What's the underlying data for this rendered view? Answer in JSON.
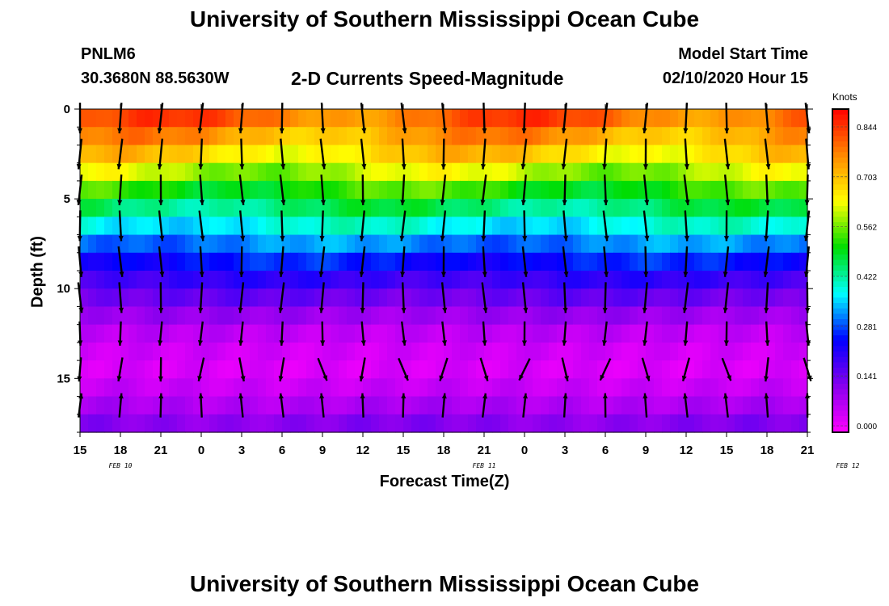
{
  "header": {
    "title": "University of Southern Mississippi Ocean Cube",
    "station_id": "PNLM6",
    "coordinates": "30.3680N 88.5630W",
    "chart_title": "2-D Currents Speed-Magnitude",
    "model_start_label": "Model Start Time",
    "model_start_value": "02/10/2020 Hour 15"
  },
  "footer": {
    "title": "University of Southern Mississippi Ocean Cube"
  },
  "colorbar": {
    "units": "Knots",
    "ticks": [
      "0.000",
      "0.141",
      "0.281",
      "0.422",
      "0.562",
      "0.703",
      "0.844"
    ],
    "range": [
      0,
      0.92
    ],
    "colors": [
      "#ff00ff",
      "#8800ee",
      "#0000ff",
      "#00ffff",
      "#00dd00",
      "#ffff00",
      "#ff8800",
      "#ff0000"
    ]
  },
  "chart_data": {
    "type": "heatmap",
    "title": "2-D Currents Speed-Magnitude",
    "xlabel": "Forecast Time(Z)",
    "ylabel": "Depth (ft)",
    "x_tick_labels": [
      "15",
      "18",
      "21",
      "0",
      "3",
      "6",
      "9",
      "12",
      "15",
      "18",
      "21",
      "0",
      "3",
      "6",
      "9",
      "12",
      "15",
      "18",
      "21"
    ],
    "date_labels": [
      {
        "text": "FEB 10",
        "hour": 3
      },
      {
        "text": "FEB 11",
        "hour": 30
      },
      {
        "text": "FEB 12",
        "hour": 57
      }
    ],
    "xlim_hours": [
      0,
      54
    ],
    "y_ticks": [
      0,
      5,
      10,
      15
    ],
    "ylim_ft": [
      0,
      18
    ],
    "speed_profile_by_depth_ft": [
      {
        "depth": 0.5,
        "speed": 0.82
      },
      {
        "depth": 1.5,
        "speed": 0.76
      },
      {
        "depth": 2.5,
        "speed": 0.7
      },
      {
        "depth": 3.5,
        "speed": 0.62
      },
      {
        "depth": 4.5,
        "speed": 0.54
      },
      {
        "depth": 5.5,
        "speed": 0.47
      },
      {
        "depth": 6.5,
        "speed": 0.4
      },
      {
        "depth": 7.5,
        "speed": 0.33
      },
      {
        "depth": 8.5,
        "speed": 0.27
      },
      {
        "depth": 9.5,
        "speed": 0.21
      },
      {
        "depth": 10.5,
        "speed": 0.16
      },
      {
        "depth": 11.5,
        "speed": 0.11
      },
      {
        "depth": 12.5,
        "speed": 0.07
      },
      {
        "depth": 13.5,
        "speed": 0.05
      },
      {
        "depth": 14.5,
        "speed": 0.04
      },
      {
        "depth": 15.5,
        "speed": 0.06
      },
      {
        "depth": 16.5,
        "speed": 0.09
      },
      {
        "depth": 17.5,
        "speed": 0.13
      }
    ],
    "arrow_depths_ft": [
      0.5,
      2.5,
      4.5,
      6.5,
      8.5,
      10.5,
      12.5,
      14.5,
      16.5
    ]
  }
}
